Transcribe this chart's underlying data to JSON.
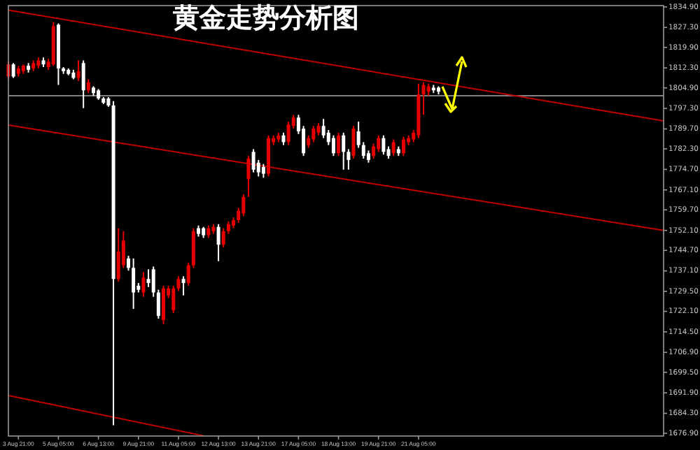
{
  "chart_data": {
    "type": "candlestick",
    "title": "黄金走势分析图",
    "categories": [
      null,
      null,
      "3 Aug 21:00",
      null,
      null,
      null,
      null,
      null,
      null,
      null,
      "5 Aug 05:00",
      null,
      null,
      null,
      null,
      null,
      null,
      null,
      "6 Aug 13:00",
      null,
      null,
      null,
      null,
      null,
      null,
      null,
      "9 Aug 21:00",
      null,
      null,
      null,
      null,
      null,
      null,
      null,
      "11 Aug 05:00",
      null,
      null,
      null,
      null,
      null,
      null,
      null,
      "12 Aug 13:00",
      null,
      null,
      null,
      null,
      null,
      null,
      null,
      "13 Aug 21:00",
      null,
      null,
      null,
      null,
      null,
      null,
      null,
      "17 Aug 05:00",
      null,
      null,
      null,
      null,
      null,
      null,
      null,
      "18 Aug 13:00",
      null,
      null,
      null,
      null,
      null,
      null,
      null,
      "19 Aug 21:00",
      null,
      null,
      null,
      null,
      null,
      null,
      null,
      "21 Aug 05:00",
      null,
      null,
      null,
      null,
      null,
      null,
      null,
      null,
      null,
      null,
      null,
      null,
      null,
      null,
      null,
      null,
      null,
      null,
      null,
      null,
      null,
      null,
      null,
      null,
      null,
      null,
      null,
      null,
      null,
      null,
      null,
      null,
      null,
      null,
      null,
      null,
      null,
      null,
      null,
      null,
      null,
      null,
      null,
      null,
      null,
      null,
      null,
      null,
      null
    ],
    "ohlc": [
      [
        1809.1,
        1814.6,
        1808.1,
        1813.6
      ],
      [
        1813.6,
        1814.1,
        1808.6,
        1809.1
      ],
      [
        1810.1,
        1813.1,
        1809.1,
        1812.1
      ],
      [
        1811.1,
        1813.6,
        1810.1,
        1813.1
      ],
      [
        1813.1,
        1814.1,
        1810.6,
        1811.6
      ],
      [
        1812.1,
        1815.1,
        1811.1,
        1814.1
      ],
      [
        1813.1,
        1816.2,
        1812.1,
        1815.1
      ],
      [
        1815.1,
        1816.2,
        1812.6,
        1813.6
      ],
      [
        1812.6,
        1815.7,
        1811.6,
        1814.6
      ],
      [
        1813.6,
        1829.3,
        1813.1,
        1827.8
      ],
      [
        1828.3,
        1828.8,
        1806.0,
        1812.1
      ],
      [
        1812.1,
        1812.6,
        1810.1,
        1811.1
      ],
      [
        1811.6,
        1812.1,
        1809.6,
        1810.1
      ],
      [
        1810.6,
        1811.6,
        1808.1,
        1808.6
      ],
      [
        1808.6,
        1815.1,
        1807.5,
        1811.1
      ],
      [
        1814.1,
        1815.1,
        1797.4,
        1804.0
      ],
      [
        1804.0,
        1808.1,
        1803.0,
        1807.0
      ],
      [
        1805.0,
        1805.5,
        1802.0,
        1803.0
      ],
      [
        1804.0,
        1804.5,
        1800.5,
        1801.0
      ],
      [
        1801.0,
        1801.5,
        1798.9,
        1799.4
      ],
      [
        1801.0,
        1801.5,
        1797.9,
        1798.4
      ],
      [
        1798.4,
        1800.0,
        1679.9,
        1734.1
      ],
      [
        1734.1,
        1752.9,
        1733.1,
        1744.3
      ],
      [
        1739.2,
        1751.8,
        1738.2,
        1748.3
      ],
      [
        1741.7,
        1742.7,
        1737.2,
        1738.2
      ],
      [
        1738.2,
        1741.7,
        1723.0,
        1729.1
      ],
      [
        1731.6,
        1732.6,
        1729.1,
        1730.1
      ],
      [
        1729.1,
        1736.7,
        1727.5,
        1734.6
      ],
      [
        1734.1,
        1737.7,
        1731.1,
        1732.6
      ],
      [
        1737.7,
        1738.7,
        1727.5,
        1729.1
      ],
      [
        1729.1,
        1730.1,
        1719.4,
        1720.4
      ],
      [
        1718.9,
        1731.6,
        1717.4,
        1730.6
      ],
      [
        1728.0,
        1731.6,
        1727.0,
        1730.6
      ],
      [
        1722.5,
        1731.6,
        1721.5,
        1730.6
      ],
      [
        1730.6,
        1735.1,
        1729.6,
        1734.1
      ],
      [
        1734.1,
        1735.1,
        1728.0,
        1732.6
      ],
      [
        1732.6,
        1740.2,
        1731.6,
        1739.2
      ],
      [
        1739.2,
        1752.9,
        1738.2,
        1751.8
      ],
      [
        1752.9,
        1753.9,
        1749.8,
        1750.8
      ],
      [
        1752.9,
        1753.4,
        1749.3,
        1750.3
      ],
      [
        1750.3,
        1753.9,
        1749.3,
        1752.9
      ],
      [
        1751.8,
        1754.4,
        1750.8,
        1753.4
      ],
      [
        1753.4,
        1754.4,
        1740.7,
        1746.8
      ],
      [
        1746.8,
        1752.9,
        1745.8,
        1751.8
      ],
      [
        1751.8,
        1755.4,
        1750.8,
        1754.4
      ],
      [
        1753.9,
        1756.9,
        1752.9,
        1755.9
      ],
      [
        1755.9,
        1760.5,
        1754.9,
        1759.4
      ],
      [
        1758.4,
        1765.5,
        1757.4,
        1764.5
      ],
      [
        1771.1,
        1779.7,
        1764.5,
        1778.7
      ],
      [
        1781.2,
        1782.2,
        1773.6,
        1774.6
      ],
      [
        1777.2,
        1778.2,
        1772.1,
        1773.6
      ],
      [
        1775.6,
        1776.7,
        1771.6,
        1773.1
      ],
      [
        1773.1,
        1787.3,
        1772.1,
        1786.3
      ],
      [
        1784.8,
        1787.3,
        1783.7,
        1786.3
      ],
      [
        1785.8,
        1788.3,
        1784.8,
        1787.3
      ],
      [
        1787.3,
        1788.3,
        1783.7,
        1784.8
      ],
      [
        1784.8,
        1792.4,
        1783.7,
        1791.3
      ],
      [
        1790.8,
        1794.9,
        1789.8,
        1793.9
      ],
      [
        1793.9,
        1794.9,
        1787.8,
        1788.8
      ],
      [
        1789.8,
        1790.8,
        1779.7,
        1780.7
      ],
      [
        1783.7,
        1787.3,
        1782.7,
        1786.3
      ],
      [
        1785.8,
        1790.8,
        1784.8,
        1789.8
      ],
      [
        1788.3,
        1791.8,
        1787.3,
        1790.8
      ],
      [
        1790.8,
        1793.4,
        1786.3,
        1787.3
      ],
      [
        1788.3,
        1789.3,
        1783.7,
        1784.8
      ],
      [
        1786.3,
        1787.3,
        1779.7,
        1780.7
      ],
      [
        1780.7,
        1788.3,
        1779.7,
        1787.3
      ],
      [
        1787.3,
        1788.3,
        1774.6,
        1781.2
      ],
      [
        1781.2,
        1782.2,
        1774.6,
        1778.2
      ],
      [
        1779.7,
        1790.8,
        1778.7,
        1789.8
      ],
      [
        1788.8,
        1792.4,
        1782.7,
        1783.7
      ],
      [
        1783.7,
        1784.8,
        1778.7,
        1779.7
      ],
      [
        1780.7,
        1781.7,
        1777.2,
        1778.2
      ],
      [
        1779.7,
        1784.3,
        1778.7,
        1783.2
      ],
      [
        1782.2,
        1787.3,
        1781.2,
        1786.3
      ],
      [
        1786.3,
        1787.3,
        1780.2,
        1781.2
      ],
      [
        1782.2,
        1783.2,
        1778.7,
        1779.7
      ],
      [
        1780.7,
        1785.8,
        1779.7,
        1784.8
      ],
      [
        1782.2,
        1783.2,
        1779.7,
        1780.7
      ],
      [
        1780.7,
        1786.8,
        1779.7,
        1785.8
      ],
      [
        1784.8,
        1787.3,
        1783.7,
        1786.3
      ],
      [
        1785.8,
        1789.3,
        1784.8,
        1788.3
      ],
      [
        1787.3,
        1806.5,
        1786.3,
        1802.5
      ],
      [
        1802.5,
        1807.0,
        1794.9,
        1806.0
      ],
      [
        1803.5,
        1806.5,
        1802.0,
        1805.5
      ],
      [
        1805.0,
        1806.0,
        1803.0,
        1804.0
      ],
      [
        1805.0,
        1805.5,
        1802.5,
        1803.5
      ],
      null,
      null,
      null,
      null,
      null,
      null,
      null,
      null,
      null,
      null,
      null,
      null,
      null,
      null,
      null,
      null,
      null,
      null,
      null,
      null,
      null,
      null,
      null,
      null,
      null,
      null,
      null,
      null,
      null,
      null,
      null,
      null,
      null,
      null,
      null,
      null,
      null,
      null,
      null,
      null,
      null,
      null,
      null,
      null,
      null
    ],
    "colors": [
      "#e60000",
      "#ffffff",
      "#e60000",
      "#e60000",
      "#ffffff",
      "#e60000",
      "#e60000",
      "#ffffff",
      "#e60000",
      "#e60000",
      "#ffffff",
      "#ffffff",
      "#ffffff",
      "#ffffff",
      "#e60000",
      "#ffffff",
      "#e60000",
      "#ffffff",
      "#ffffff",
      "#ffffff",
      "#ffffff",
      "#ffffff",
      "#e60000",
      "#e60000",
      "#ffffff",
      "#ffffff",
      "#ffffff",
      "#e60000",
      "#ffffff",
      "#ffffff",
      "#ffffff",
      "#e60000",
      "#e60000",
      "#e60000",
      "#e60000",
      "#ffffff",
      "#e60000",
      "#e60000",
      "#ffffff",
      "#ffffff",
      "#e60000",
      "#e60000",
      "#ffffff",
      "#e60000",
      "#e60000",
      "#e60000",
      "#e60000",
      "#e60000",
      "#e60000",
      "#ffffff",
      "#ffffff",
      "#ffffff",
      "#e60000",
      "#e60000",
      "#e60000",
      "#ffffff",
      "#e60000",
      "#e60000",
      "#ffffff",
      "#ffffff",
      "#e60000",
      "#e60000",
      "#e60000",
      "#ffffff",
      "#ffffff",
      "#ffffff",
      "#e60000",
      "#ffffff",
      "#ffffff",
      "#e60000",
      "#ffffff",
      "#ffffff",
      "#ffffff",
      "#e60000",
      "#e60000",
      "#ffffff",
      "#ffffff",
      "#e60000",
      "#ffffff",
      "#e60000",
      "#e60000",
      "#e60000",
      "#e60000",
      "#e60000",
      "#e60000",
      "#ffffff",
      "#ffffff",
      null,
      null,
      null,
      null,
      null,
      null,
      null,
      null,
      null,
      null,
      null,
      null,
      null,
      null,
      null,
      null,
      null,
      null,
      null,
      null,
      null,
      null,
      null,
      null,
      null,
      null,
      null,
      null,
      null,
      null,
      null,
      null,
      null,
      null,
      null,
      null,
      null,
      null,
      null,
      null,
      null,
      null,
      null,
      null,
      null
    ],
    "series": [
      {
        "type": "line",
        "color": "#c00000",
        "values": [
          1833.7,
          null,
          null,
          null,
          null,
          null,
          null,
          null,
          null,
          null,
          null,
          null,
          null,
          null,
          null,
          null,
          null,
          null,
          null,
          null,
          null,
          null,
          null,
          null,
          null,
          null,
          null,
          null,
          null,
          null,
          null,
          null,
          null,
          null,
          null,
          null,
          null,
          null,
          null,
          null,
          null,
          null,
          null,
          null,
          null,
          null,
          null,
          null,
          null,
          null,
          null,
          null,
          null,
          null,
          null,
          null,
          null,
          null,
          null,
          null,
          null,
          null,
          null,
          null,
          null,
          null,
          null,
          null,
          null,
          null,
          null,
          null,
          null,
          null,
          null,
          null,
          null,
          null,
          null,
          null,
          null,
          null,
          null,
          null,
          null,
          null,
          null,
          null,
          null,
          null,
          null,
          null,
          null,
          null,
          null,
          null,
          null,
          null,
          null,
          null,
          null,
          null,
          null,
          null,
          null,
          null,
          null,
          null,
          null,
          null,
          null,
          null,
          null,
          null,
          null,
          null,
          null,
          null,
          null,
          null,
          null,
          null,
          null,
          null,
          null,
          null,
          null,
          null,
          null,
          null,
          null,
          1792.7
        ]
      },
      {
        "type": "line",
        "color": "#c00000",
        "values": [
          1791.1,
          null,
          null,
          null,
          null,
          null,
          null,
          null,
          null,
          null,
          null,
          null,
          null,
          null,
          null,
          null,
          null,
          null,
          null,
          null,
          null,
          null,
          null,
          null,
          null,
          null,
          null,
          null,
          null,
          null,
          null,
          null,
          null,
          null,
          null,
          null,
          null,
          null,
          null,
          null,
          null,
          null,
          null,
          null,
          null,
          null,
          null,
          null,
          null,
          null,
          null,
          null,
          null,
          null,
          null,
          null,
          null,
          null,
          null,
          null,
          null,
          null,
          null,
          null,
          null,
          null,
          null,
          null,
          null,
          null,
          null,
          null,
          null,
          null,
          null,
          null,
          null,
          null,
          null,
          null,
          null,
          null,
          null,
          null,
          null,
          null,
          null,
          null,
          null,
          null,
          null,
          null,
          null,
          null,
          null,
          null,
          null,
          null,
          null,
          null,
          null,
          null,
          null,
          null,
          null,
          null,
          null,
          null,
          null,
          null,
          null,
          null,
          null,
          null,
          null,
          null,
          null,
          null,
          null,
          null,
          null,
          null,
          null,
          null,
          null,
          null,
          null,
          null,
          null,
          null,
          null,
          1752.1
        ]
      },
      {
        "type": "line",
        "color": "#c00000",
        "values": [
          1690.9,
          null,
          null,
          null,
          null,
          null,
          null,
          null,
          null,
          null,
          null,
          null,
          null,
          null,
          null,
          null,
          null,
          null,
          null,
          null,
          null,
          null,
          null,
          null,
          null,
          null,
          null,
          null,
          null,
          null,
          null,
          null,
          null,
          null,
          null,
          null,
          null,
          null,
          null,
          1676.0,
          null,
          null,
          null,
          null,
          null,
          null,
          null,
          null,
          null,
          null,
          null,
          null,
          null,
          null,
          null,
          null,
          null,
          null,
          null,
          null,
          null,
          null,
          null,
          null,
          null,
          null,
          null,
          null,
          null,
          null,
          null,
          null,
          null,
          null,
          null,
          null,
          null,
          null,
          null,
          null,
          null,
          null,
          null,
          null,
          null,
          null,
          null,
          null,
          null,
          null,
          null,
          null,
          null,
          null,
          null,
          null,
          null,
          null,
          null,
          null,
          null,
          null,
          null,
          null,
          null,
          null,
          null,
          null,
          null,
          null,
          null,
          null,
          null,
          null,
          null,
          null,
          null,
          null,
          null,
          null,
          null,
          null,
          null,
          null,
          null,
          null,
          null,
          null,
          null,
          null,
          null,
          null
        ]
      }
    ],
    "ylim": [
      1675.9,
      1835.4
    ],
    "yticks": [
      {
        "value": 1834.9,
        "label": "1834.90"
      },
      {
        "value": 1827.3,
        "label": "1827.30"
      },
      {
        "value": 1819.9,
        "label": "1819.90"
      },
      {
        "value": 1812.3,
        "label": "1812.30"
      },
      {
        "value": 1804.9,
        "label": "1804.90"
      },
      {
        "value": 1797.3,
        "label": "1797.30"
      },
      {
        "value": 1789.7,
        "label": "1789.70"
      },
      {
        "value": 1782.3,
        "label": "1782.30"
      },
      {
        "value": 1774.7,
        "label": "1774.70"
      },
      {
        "value": 1767.1,
        "label": "1767.10"
      },
      {
        "value": 1759.7,
        "label": "1759.70"
      },
      {
        "value": 1752.1,
        "label": "1752.10"
      },
      {
        "value": 1744.7,
        "label": "1744.70"
      },
      {
        "value": 1737.1,
        "label": "1737.10"
      },
      {
        "value": 1729.5,
        "label": "1729.50"
      },
      {
        "value": 1722.1,
        "label": "1722.10"
      },
      {
        "value": 1714.5,
        "label": "1714.50"
      },
      {
        "value": 1706.9,
        "label": "1706.90"
      },
      {
        "value": 1699.5,
        "label": "1699.50"
      },
      {
        "value": 1691.9,
        "label": "1691.90"
      },
      {
        "value": 1684.3,
        "label": "1684.30"
      },
      {
        "value": 1676.9,
        "label": "1676.90"
      }
    ],
    "ref_lines": [
      {
        "axis": "y",
        "value": 1802.0,
        "color": "#808080"
      }
    ]
  }
}
